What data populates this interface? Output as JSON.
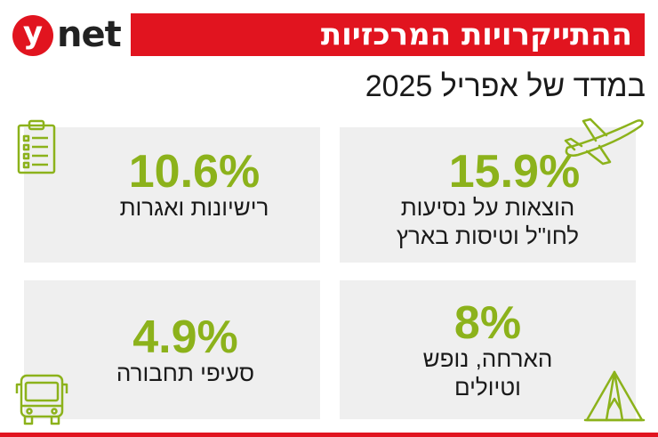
{
  "logo": {
    "y": "y",
    "net": "net"
  },
  "header": {
    "title": "ההתייקרויות המרכזיות",
    "subtitle": "במדד של אפריל 2025"
  },
  "colors": {
    "accent": "#e1141f",
    "value": "#8cb21b",
    "card": "#efefef"
  },
  "cards": [
    {
      "value": "15.9%",
      "label_line1": "הוצאות על נסיעות",
      "label_line2": "לחו\"ל וטיסות בארץ",
      "icon": "airplane-icon"
    },
    {
      "value": "10.6%",
      "label_line1": "רישיונות ואגרות",
      "icon": "clipboard-checklist-icon"
    },
    {
      "value": "8%",
      "label_line1": "הארחה, נופש",
      "label_line2": "וטיולים",
      "icon": "tent-icon"
    },
    {
      "value": "4.9%",
      "label_line1": "סעיפי תחבורה",
      "icon": "bus-icon"
    }
  ]
}
